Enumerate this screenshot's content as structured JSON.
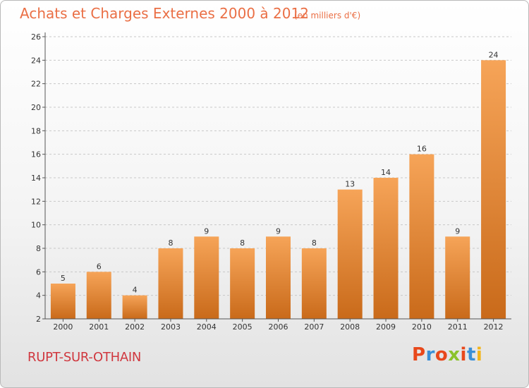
{
  "header": {
    "title": "Achats et Charges Externes 2000 à 2012",
    "unit": "(en milliers d'€)"
  },
  "footer": {
    "commune": "RUPT-SUR-OTHAIN",
    "brand": "Proxiti"
  },
  "colors": {
    "title": "#ea6f45",
    "commune": "#d0383f",
    "bar_light": "#f6a458",
    "bar_dark": "#c96a1a",
    "brand_letters": [
      "#e8481b",
      "#3a8fd6",
      "#e8481b",
      "#8bc22b",
      "#e8481b",
      "#3a8fd6",
      "#f2b51b"
    ]
  },
  "chart_data": {
    "type": "bar",
    "categories": [
      "2000",
      "2001",
      "2002",
      "2003",
      "2004",
      "2005",
      "2006",
      "2007",
      "2008",
      "2009",
      "2010",
      "2011",
      "2012"
    ],
    "values": [
      5,
      6,
      4,
      8,
      9,
      8,
      9,
      8,
      13,
      14,
      16,
      9,
      24
    ],
    "ylim": [
      2,
      26
    ],
    "yticks": [
      2,
      4,
      6,
      8,
      10,
      12,
      14,
      16,
      18,
      20,
      22,
      24,
      26
    ],
    "grid": "horizontal-dashed",
    "legend": "none"
  }
}
